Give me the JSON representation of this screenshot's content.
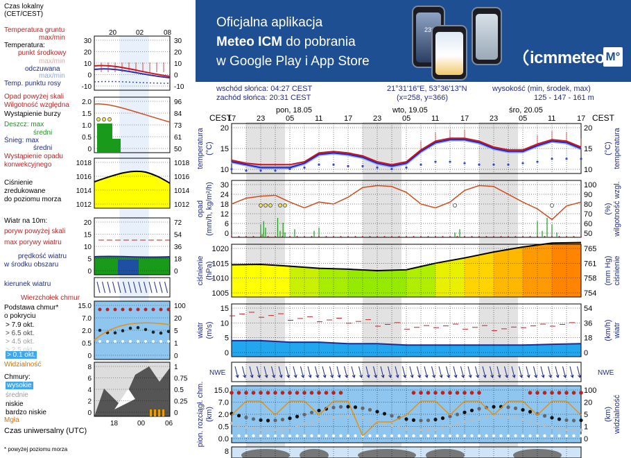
{
  "banner": {
    "line1": "Oficjalna aplikacja",
    "line2_bold": "Meteo ICM",
    "line2_rest": " do pobrania",
    "line3": "w Google Play i App Store",
    "logo_text": "icmmeteo",
    "logo_box": "M°",
    "phone_temp": "23°"
  },
  "info": {
    "sunrise": "wschód słońca: 04:27 CEST",
    "sunset": "zachód słońca: 20:31 CEST",
    "coords": "21°31'16\"E, 53°36'13\"N",
    "grid": "(x=258, y=366)",
    "height_label": "wysokość (min, środek, max)",
    "height_values": "125 - 147 - 161 m"
  },
  "legend": {
    "local_time": "Czas lokalny",
    "local_time_zone": "(CET/CEST)",
    "local_ticks": [
      "20",
      "02",
      "08"
    ],
    "ground_temp": "Temperatura gruntu",
    "ground_temp_sub": "max/min",
    "temperature": "Temperatura:",
    "mid_point": "punkt środkowy",
    "max_min": "max/min",
    "feels_like": "odczuwana",
    "max_min2": "max/min",
    "dew_point": "Temp. punktu rosy",
    "precip_above_scale": "Opad powyżej skali",
    "humidity": "Wilgotność względna",
    "storm": "Wystąpienie burzy",
    "rain_max": "Deszcz: max",
    "rain_avg": "średni",
    "snow_max": "Śnieg:  max",
    "snow_avg": "średni",
    "convective": "Wystąpienie opadu",
    "convective2": "konwekcyjnego",
    "pressure1": "Ciśnienie",
    "pressure2": "zredukowane",
    "pressure3": "do poziomu morza",
    "wind10": "Wiatr na 10m:",
    "gust_above": "poryw powyżej skali",
    "gust_max": "max porywy wiatru",
    "wind_speed": "prędkość wiatru",
    "wind_speed2": "w środku obszaru",
    "wind_dir": "kierunek wiatru",
    "cloud_top": "Wierzchołek chmur",
    "cloud_base": "Podstawa chmur*",
    "cloud_base2": "o pokryciu",
    "okt1": "> 7.9 okt.",
    "okt2": "> 6.5 okt.",
    "okt3": "> 4.5 okt.",
    "okt4": "> 2.5 okt.",
    "okt5": "> 0.1 okt.",
    "visibility": "Widzialność",
    "clouds": "Chmury:",
    "high": "wysokie",
    "mid": "średnie",
    "low": "niskie",
    "very_low": "bardzo niskie",
    "fog": "Mgła",
    "utc": "Czas uniwersalny (UTC)",
    "utc_ticks": [
      "18",
      "00",
      "06"
    ],
    "footnote": "* powyżej poziomu morza",
    "axis_temp_l": [
      "30",
      "20",
      "10",
      "0",
      "-10"
    ],
    "axis_temp_r": [
      "30",
      "20",
      "10",
      "0",
      "-10"
    ],
    "axis_prec_l": [
      "2.0",
      "1.5",
      "1.0",
      "0.5",
      "0"
    ],
    "axis_prec_r": [
      "96",
      "84",
      "73",
      "61",
      "50"
    ],
    "axis_pres_l": [
      "1018",
      "1016",
      "1014",
      "1012"
    ],
    "axis_pres_r": [
      "1018",
      "1016",
      "1014",
      "1012"
    ],
    "axis_wind_l": [
      "20",
      "15",
      "10",
      "5",
      "0"
    ],
    "axis_wind_r": [
      "72",
      "54",
      "36",
      "18",
      "0"
    ],
    "axis_cb_l": [
      "15.0",
      "7.0",
      "2.0",
      "0.5",
      "0"
    ],
    "axis_cb_r": [
      "100",
      "20",
      "5",
      "1",
      "0"
    ],
    "axis_cl_l": [
      "8",
      "6",
      "4",
      "2",
      "0"
    ],
    "axis_cl_r": [
      "1",
      "0.75",
      "0.5",
      "0.25",
      "0"
    ]
  },
  "main": {
    "cest_left": "CEST",
    "cest_right": "CEST",
    "days": [
      "pon, 18.05",
      "wto, 19.05",
      "śro, 20.05"
    ],
    "hour_ticks": [
      "17",
      "23",
      "05",
      "11",
      "17",
      "23",
      "05",
      "11",
      "17",
      "23",
      "05",
      "11",
      "17"
    ],
    "temp_label_l": "temperatura",
    "temp_unit_l": "(°C)",
    "temp_label_r": "temperatura",
    "temp_unit_r": "(°C)",
    "prec_label_l": "opad",
    "prec_unit_l": "(mm/h, kg/m²/h)",
    "prec_label_r": "wilgotność wzgl.",
    "prec_unit_r": "(%)",
    "pres_label_l": "ciśnienie",
    "pres_unit_l": "(hPa)",
    "pres_label_r": "ciśnienie",
    "pres_unit_r": "(mm Hg)",
    "wind_label_l": "wiatr",
    "wind_unit_l": "(m/s)",
    "wind_label_r": "wiatr",
    "wind_unit_r": "(km/h)",
    "cb_label_l": "pion. rozciągł. chm.",
    "cb_unit_l": "(km)",
    "cb_label_r": "widzialność",
    "cb_unit_r": "(km)",
    "axis_temp_l": [
      "20",
      "15",
      "10"
    ],
    "axis_temp_r": [
      "20",
      "15",
      "10"
    ],
    "axis_prec_l": [
      "30",
      "24",
      "18",
      "12",
      "6",
      "0"
    ],
    "axis_prec_r": [
      "100",
      "90",
      "80",
      "70",
      "60",
      "50"
    ],
    "axis_pres_l": [
      "1020",
      "1015",
      "1010",
      "1005"
    ],
    "axis_pres_r": [
      "765",
      "761",
      "758",
      "754"
    ],
    "axis_wind_l": [
      "15",
      "10",
      "5",
      "0"
    ],
    "axis_wind_r": [
      "54",
      "36",
      "18",
      "0"
    ],
    "axis_cb_l": [
      "15.0",
      "7.0",
      "2.0",
      "0.5",
      "0.0"
    ],
    "axis_cb_r": [
      "100",
      "20",
      "5",
      "1",
      "0"
    ],
    "axis_cl_l": [
      "8"
    ]
  },
  "chart_data": [
    {
      "type": "line",
      "panel": "temperatura",
      "hours_from_start": [
        0,
        3,
        6,
        9,
        12,
        15,
        18,
        21,
        24,
        27,
        30,
        33,
        36,
        39,
        42,
        45,
        48,
        51,
        54,
        57,
        60,
        63,
        66,
        69,
        72
      ],
      "series": [
        {
          "values": [
            11.5,
            10.5,
            10,
            10,
            10,
            11,
            14,
            14.5,
            14,
            13,
            11,
            10,
            11,
            15,
            18,
            19,
            19,
            18,
            16,
            15,
            15,
            17,
            18.5,
            18,
            16
          ]
        },
        {
          "values": [
            11,
            10,
            9,
            9,
            9,
            10.5,
            13.5,
            14,
            13.5,
            12.5,
            10.5,
            9.5,
            10.5,
            14.5,
            17.5,
            18.5,
            18.5,
            17.5,
            15.5,
            14.5,
            14.5,
            16.5,
            18,
            17.5,
            15.5
          ]
        },
        {
          "values": [
            8.5,
            8,
            8,
            8,
            8.5,
            9,
            10,
            10,
            9.5,
            9.5,
            9,
            8.5,
            9,
            10,
            11,
            11,
            10.5,
            10,
            10,
            10,
            10.5,
            11,
            12,
            12,
            12
          ]
        }
      ],
      "ylim": [
        7,
        24
      ]
    },
    {
      "type": "bar",
      "panel": "opad",
      "hours_from_start": [
        0,
        3,
        6,
        9,
        12,
        15,
        18,
        21,
        24,
        27,
        30,
        33,
        36,
        39,
        42,
        45,
        48,
        51,
        54,
        57,
        60,
        63,
        66,
        69,
        72
      ],
      "humidity_pct": [
        80,
        86,
        88,
        89,
        82,
        76,
        82,
        80,
        87,
        97,
        99,
        98,
        92,
        80,
        76,
        82,
        94,
        99,
        98,
        90,
        82,
        75,
        64,
        78,
        82
      ],
      "ylim": [
        0,
        30
      ]
    },
    {
      "type": "area",
      "panel": "ciśnienie",
      "hours_from_start": [
        0,
        6,
        12,
        18,
        24,
        30,
        36,
        42,
        48,
        54,
        60,
        66,
        72
      ],
      "values": [
        1014.5,
        1014.6,
        1014,
        1013.3,
        1013,
        1012.5,
        1012.8,
        1015,
        1016.8,
        1018.8,
        1020.5,
        1021.8,
        1022
      ],
      "ylim": [
        1005,
        1022
      ]
    },
    {
      "type": "line",
      "panel": "wiatr",
      "hours_from_start": [
        0,
        6,
        12,
        18,
        24,
        30,
        36,
        42,
        48,
        54,
        60,
        66,
        72
      ],
      "series": [
        {
          "values": [
            4,
            4,
            3.5,
            3.5,
            3,
            3,
            2.5,
            2.5,
            2.5,
            2.5,
            2.5,
            2.8,
            3
          ]
        },
        {
          "values": [
            13,
            12.5,
            11.5,
            11,
            10.5,
            9.5,
            8.5,
            9,
            8.5,
            8,
            9,
            9.5,
            10
          ]
        }
      ],
      "ylim": [
        0,
        15
      ]
    }
  ]
}
